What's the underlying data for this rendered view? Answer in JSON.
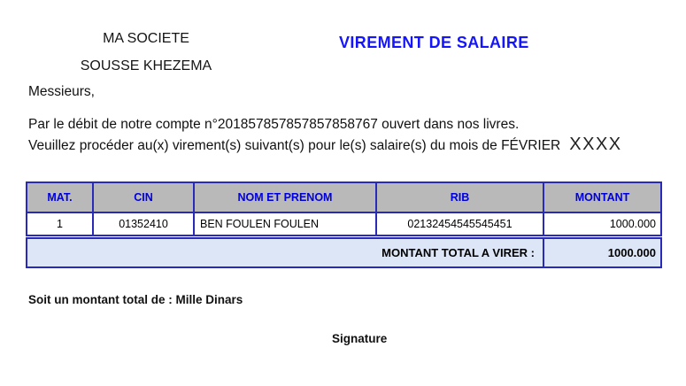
{
  "company": {
    "line1": "MA SOCIETE",
    "line2": "SOUSSE KHEZEMA"
  },
  "title": "VIREMENT DE SALAIRE",
  "salutation": "Messieurs,",
  "body": {
    "line1": "Par le débit de notre compte n°201857857857857858767 ouvert dans nos livres.",
    "line2_prefix": "Veuillez procéder au(x) virement(s) suivant(s) pour le(s) salaire(s) du mois de FÉVRIER",
    "year_placeholder": "XXXX"
  },
  "table": {
    "headers": [
      "MAT.",
      "CIN",
      "NOM ET PRENOM",
      "RIB",
      "MONTANT"
    ],
    "rows": [
      [
        "1",
        "01352410",
        "BEN FOULEN FOULEN",
        "02132454545545451",
        "1000.000"
      ]
    ],
    "total_label": "MONTANT TOTAL A VIRER :",
    "total_value": "1000.000"
  },
  "footer": {
    "amount_words": "Soit un montant total de : Mille Dinars",
    "signature_label": "Signature"
  },
  "colors": {
    "title_blue": "#1414ff",
    "header_text_blue": "#0000dd",
    "table_border": "#2a2ab8",
    "header_bg": "#b9b9b9",
    "total_row_bg": "#dce6f7"
  }
}
